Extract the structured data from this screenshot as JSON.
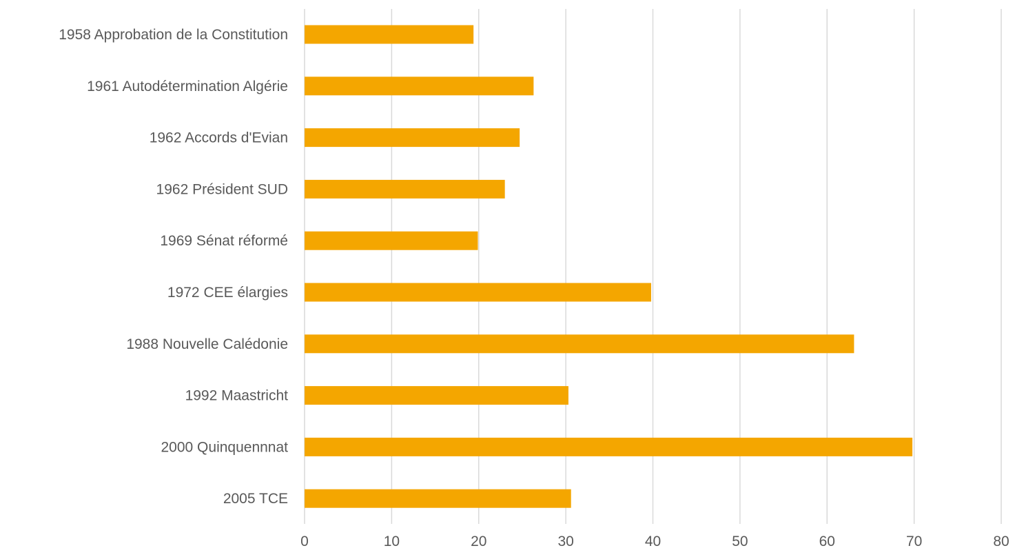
{
  "chart_data": {
    "type": "bar",
    "orientation": "horizontal",
    "categories": [
      "1958 Approbation de la Constitution",
      "1961 Autodétermination Algérie",
      "1962 Accords d'Evian",
      "1962 Président SUD",
      "1969 Sénat réformé",
      "1972 CEE élargies",
      "1988 Nouvelle Calédonie",
      "1992 Maastricht",
      "2000 Quinquennnat",
      "2005 TCE"
    ],
    "values": [
      19.4,
      26.3,
      24.7,
      23.0,
      19.9,
      39.8,
      63.1,
      30.3,
      69.8,
      30.6
    ],
    "xlim": [
      0,
      80
    ],
    "x_ticks": [
      "0",
      "10",
      "20",
      "30",
      "40",
      "50",
      "60",
      "70",
      "80"
    ],
    "grid": "vertical",
    "legend": "none",
    "title": "",
    "xlabel": "",
    "ylabel": "",
    "bar_color": "#f4a600",
    "grid_color": "#d9d9d9",
    "text_color": "#595959"
  }
}
